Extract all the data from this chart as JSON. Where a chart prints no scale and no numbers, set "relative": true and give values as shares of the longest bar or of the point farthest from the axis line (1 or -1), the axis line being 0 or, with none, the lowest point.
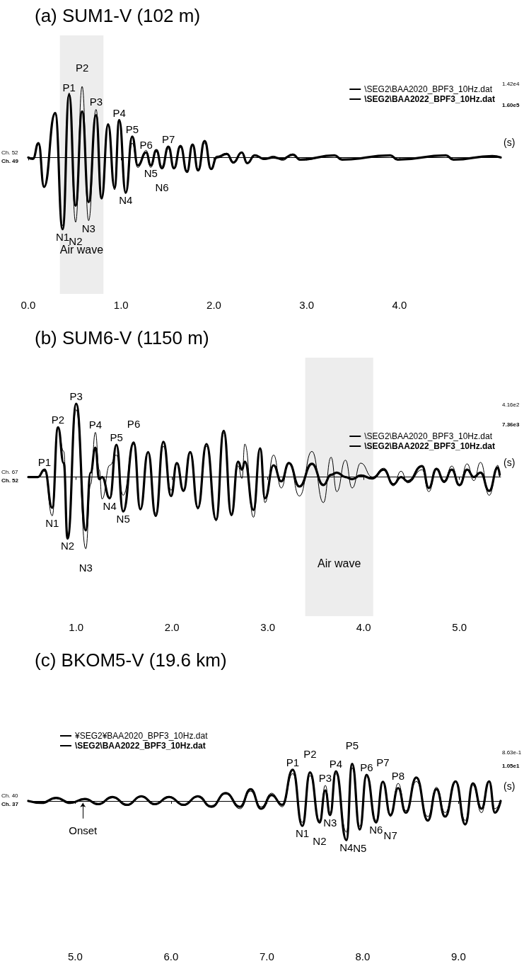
{
  "chart_data": [
    {
      "type": "line",
      "title": "(a) SUM1-V (102 m)",
      "xlabel": "(s)",
      "relative": true,
      "marker": "none",
      "grid": false,
      "legend": "top right",
      "tick_labels": "x",
      "x": [
        0,
        0.05,
        0.11,
        0.17,
        0.29,
        0.37,
        0.44,
        0.51,
        0.58,
        0.65,
        0.73,
        0.79,
        0.86,
        0.93,
        0.98,
        1.05,
        1.12,
        1.18,
        1.27,
        1.32,
        1.38,
        1.44,
        1.51,
        1.57,
        1.64,
        1.71,
        1.77,
        1.83,
        1.9,
        1.97,
        2.03,
        2.14,
        2.21,
        2.3,
        2.36,
        2.44,
        2.54,
        2.64,
        2.74,
        2.85,
        2.93,
        3.3,
        3.38,
        3.9,
        3.98,
        4.5,
        4.58,
        5.0,
        5.09
      ],
      "xlim": [
        0,
        5.09
      ],
      "xticks": [
        {
          "value": 0,
          "label": "0.0"
        },
        {
          "value": 1,
          "label": "1.0"
        },
        {
          "value": 2,
          "label": "2.0"
        },
        {
          "value": 3,
          "label": "3.0"
        },
        {
          "value": 4,
          "label": "4.0"
        }
      ],
      "series": [
        {
          "name": "\\SEG2\\BAA2020_BPF3_10Hz.dat",
          "color": "#000000",
          "values": [
            0,
            -0.02,
            0.18,
            -0.4,
            0.6,
            -0.95,
            0.9,
            -0.9,
            0.99,
            -0.88,
            0.67,
            -0.55,
            0.45,
            -0.45,
            0.5,
            -0.5,
            0.2,
            -0.14,
            0.1,
            -0.14,
            0.08,
            -0.12,
            0.12,
            -0.14,
            0.14,
            -0.18,
            0.16,
            -0.16,
            0.2,
            -0.15,
            0.02,
            0.06,
            -0.08,
            0.06,
            -0.08,
            0.04,
            -0.03,
            0.02,
            -0.04,
            0.05,
            -0.04,
            0.03,
            -0.02,
            0.02,
            -0.02,
            0.02,
            -0.02,
            0.02,
            0
          ]
        },
        {
          "name": "\\SEG2\\BAA2022_BPF3_10Hz.dat",
          "color": "#000000",
          "values": [
            0,
            -0.02,
            0.2,
            -0.41,
            0.62,
            -1.0,
            0.87,
            -0.67,
            0.64,
            -0.62,
            0.59,
            -0.57,
            0.46,
            -0.42,
            0.52,
            -0.49,
            0.29,
            -0.11,
            0.07,
            -0.11,
            0.1,
            -0.15,
            0.15,
            -0.15,
            0.16,
            -0.2,
            0.18,
            -0.18,
            0.23,
            -0.16,
            0,
            0.05,
            -0.07,
            0.07,
            -0.08,
            0.03,
            -0.02,
            0,
            -0.02,
            0.04,
            -0.03,
            0.03,
            -0.03,
            0.03,
            -0.03,
            0.03,
            -0.03,
            0.02,
            0
          ]
        }
      ],
      "bands": [
        {
          "axis": "x",
          "from": 0.34,
          "to": 0.81,
          "label": "Air wave"
        }
      ],
      "annotations": [
        "Ch. 52",
        "Ch. 49",
        "1.42e4",
        "1.60e5",
        {
          "text": "P1",
          "x": 0.44,
          "y": 0.87
        },
        {
          "text": "P2",
          "x": 0.58,
          "y": 0.99
        },
        {
          "text": "P3",
          "x": 0.73,
          "y": 0.67
        },
        {
          "text": "P4",
          "x": 0.98,
          "y": 0.52
        },
        {
          "text": "P5",
          "x": 1.12,
          "y": 0.29
        },
        {
          "text": "P6",
          "x": 1.27,
          "y": 0.07
        },
        {
          "text": "P7",
          "x": 1.51,
          "y": 0.15
        },
        {
          "text": "N1",
          "x": 0.37,
          "y": -1.0
        },
        {
          "text": "N2",
          "x": 0.51,
          "y": -0.9
        },
        {
          "text": "N3",
          "x": 0.65,
          "y": -0.88
        },
        {
          "text": "N4",
          "x": 1.05,
          "y": -0.49
        },
        {
          "text": "N5",
          "x": 1.32,
          "y": -0.11
        },
        {
          "text": "N6",
          "x": 1.44,
          "y": -0.15
        }
      ]
    },
    {
      "type": "line",
      "title": "(b) SUM6-V (1150 m)",
      "xlabel": "(s)",
      "relative": true,
      "marker": "none",
      "grid": false,
      "legend": "top right",
      "tick_labels": "x",
      "x": [
        0.5,
        0.6,
        0.67,
        0.75,
        0.81,
        0.87,
        0.91,
        1.0,
        1.1,
        1.15,
        1.2,
        1.24,
        1.27,
        1.35,
        1.42,
        1.49,
        1.6,
        1.67,
        1.75,
        1.83,
        1.91,
        1.99,
        2.05,
        2.12,
        2.19,
        2.27,
        2.36,
        2.46,
        2.54,
        2.62,
        2.69,
        2.73,
        2.76,
        2.85,
        2.92,
        2.97,
        3.06,
        3.14,
        3.22,
        3.33,
        3.46,
        3.58,
        3.66,
        3.72,
        3.81,
        3.88,
        3.97,
        4.09,
        4.21,
        4.31,
        4.39,
        4.46,
        4.61,
        4.68,
        4.76,
        4.84,
        4.92,
        5.0,
        5.08,
        5.15,
        5.22,
        5.31,
        5.4,
        5.42
      ],
      "xlim": [
        0.5,
        5.43
      ],
      "xticks": [
        {
          "value": 1,
          "label": "1.0"
        },
        {
          "value": 2,
          "label": "2.0"
        },
        {
          "value": 3,
          "label": "3.0"
        },
        {
          "value": 4,
          "label": "4.0"
        },
        {
          "value": 5,
          "label": "5.0"
        }
      ],
      "series": [
        {
          "name": "\\SEG2\\BAA2020_BPF3_10Hz.dat",
          "color": "#000000",
          "values": [
            0,
            0,
            0.08,
            -0.53,
            0.66,
            0.35,
            -0.8,
            0.92,
            -0.98,
            -0.1,
            0.61,
            0.1,
            -0.3,
            0.16,
            0.3,
            -0.25,
            0.45,
            -0.45,
            0.34,
            -0.5,
            0.42,
            -0.18,
            0.18,
            -0.17,
            0.34,
            -0.44,
            0.42,
            -0.6,
            0.6,
            -0.5,
            0.15,
            -0.02,
            0.45,
            -0.55,
            0.4,
            -0.35,
            0.3,
            -0.15,
            0.2,
            -0.26,
            0.35,
            -0.35,
            0.27,
            -0.2,
            0.23,
            -0.15,
            0.19,
            0,
            0.12,
            -0.12,
            0.08,
            -0.08,
            0.1,
            -0.2,
            0.12,
            -0.08,
            0.15,
            -0.12,
            0.18,
            -0.05,
            0.2,
            -0.25,
            0.16,
            0
          ]
        },
        {
          "name": "\\SEG2\\BAA2022_BPF3_10Hz.dat",
          "color": "#000000",
          "values": [
            0,
            0,
            0.1,
            -0.42,
            0.68,
            0.19,
            -0.84,
            1.0,
            -0.73,
            0.06,
            0.4,
            -0.03,
            0,
            -0.29,
            0.44,
            -0.47,
            0.47,
            -0.44,
            0.34,
            -0.53,
            0.48,
            -0.26,
            0.19,
            -0.19,
            0.34,
            -0.42,
            0.45,
            -0.58,
            0.63,
            -0.52,
            0.21,
            0.1,
            0.21,
            -0.45,
            0.39,
            -0.29,
            0.16,
            -0.06,
            0.19,
            -0.13,
            0.18,
            -0.11,
            0.03,
            0.06,
            0,
            -0.03,
            0.02,
            -0.02,
            0.1,
            -0.1,
            0,
            -0.06,
            0.15,
            -0.15,
            0.11,
            -0.06,
            0.1,
            -0.11,
            0.1,
            0,
            0.06,
            -0.19,
            0.13,
            0.03
          ]
        }
      ],
      "bands": [
        {
          "axis": "x",
          "from": 3.39,
          "to": 4.1,
          "label": "Air wave"
        }
      ],
      "annotations": [
        "Ch. 67",
        "Ch. 52",
        "4.16e2",
        "7.36e3",
        {
          "text": "P1",
          "x": 0.67,
          "y": 0.1
        },
        {
          "text": "P2",
          "x": 0.81,
          "y": 0.68
        },
        {
          "text": "P3",
          "x": 1.0,
          "y": 1.0
        },
        {
          "text": "P4",
          "x": 1.2,
          "y": 0.61
        },
        {
          "text": "P5",
          "x": 1.42,
          "y": 0.44
        },
        {
          "text": "P6",
          "x": 1.6,
          "y": 0.47
        },
        {
          "text": "N1",
          "x": 0.75,
          "y": -0.53
        },
        {
          "text": "N2",
          "x": 0.91,
          "y": -0.84
        },
        {
          "text": "N3",
          "x": 1.1,
          "y": -0.98
        },
        {
          "text": "N4",
          "x": 1.35,
          "y": -0.29
        },
        {
          "text": "N5",
          "x": 1.49,
          "y": -0.47
        }
      ]
    },
    {
      "type": "line",
      "title": "(c) BKOM5-V (19.6 km)",
      "xlabel": "(s)",
      "relative": true,
      "marker": "none",
      "grid": false,
      "legend": "top left",
      "tick_labels": "x",
      "x": [
        4.51,
        4.65,
        4.8,
        4.95,
        5.1,
        5.24,
        5.39,
        5.54,
        5.69,
        5.83,
        5.98,
        6.13,
        6.28,
        6.42,
        6.57,
        6.72,
        6.83,
        6.94,
        7.05,
        7.16,
        7.27,
        7.37,
        7.45,
        7.55,
        7.61,
        7.66,
        7.72,
        7.83,
        7.89,
        7.97,
        8.04,
        8.14,
        8.21,
        8.29,
        8.37,
        8.45,
        8.56,
        8.68,
        8.77,
        8.86,
        8.97,
        9.07,
        9.15,
        9.24,
        9.32,
        9.38,
        9.44
      ],
      "xlim": [
        4.51,
        9.44
      ],
      "xticks": [
        {
          "value": 5,
          "label": "5.0"
        },
        {
          "value": 6,
          "label": "6.0"
        },
        {
          "value": 7,
          "label": "7.0"
        },
        {
          "value": 8,
          "label": "8.0"
        },
        {
          "value": 9,
          "label": "9.0"
        }
      ],
      "series": [
        {
          "name": "¥SEG2¥BAA2020_BPF3_10Hz.dat",
          "color": "#000000",
          "values": [
            0,
            -0.04,
            0.06,
            -0.06,
            0.04,
            -0.1,
            0.08,
            -0.12,
            0.1,
            -0.1,
            0.12,
            -0.12,
            0.1,
            -0.12,
            0.18,
            -0.2,
            0.25,
            -0.15,
            0.2,
            -0.15,
            0.7,
            -0.55,
            0.65,
            -0.5,
            0.4,
            -0.3,
            0.7,
            -0.8,
            0.85,
            -0.65,
            0.62,
            -0.5,
            0.5,
            -0.4,
            0.45,
            -0.25,
            0.5,
            -0.4,
            0.35,
            -0.3,
            0.5,
            -0.5,
            0.4,
            -0.3,
            0.5,
            -0.2,
            0
          ]
        },
        {
          "name": "\\SEG2\\BAA2022_BPF3_10Hz.dat",
          "color": "#000000",
          "values": [
            0,
            -0.05,
            0.08,
            -0.05,
            0.05,
            -0.08,
            0.1,
            -0.1,
            0.12,
            -0.08,
            0.1,
            -0.1,
            0.12,
            -0.15,
            0.2,
            -0.15,
            0.3,
            -0.2,
            0.15,
            -0.1,
            0.8,
            -0.64,
            0.73,
            -0.55,
            0.27,
            -0.36,
            0.76,
            -1.0,
            0.95,
            -0.73,
            0.67,
            -0.55,
            0.49,
            -0.36,
            0.33,
            -0.3,
            0.6,
            -0.5,
            0.3,
            -0.4,
            0.5,
            -0.6,
            0.45,
            -0.2,
            0.5,
            -0.3,
            0
          ]
        }
      ],
      "annotations": [
        "Ch. 40",
        "Ch. 37",
        "8.63e-1",
        "1.05e1",
        {
          "text": "Onset",
          "x": 5.08,
          "y": 0
        },
        {
          "text": "P1",
          "x": 7.27,
          "y": 0.8
        },
        {
          "text": "P2",
          "x": 7.45,
          "y": 0.73
        },
        {
          "text": "P3",
          "x": 7.61,
          "y": 0.4
        },
        {
          "text": "P4",
          "x": 7.72,
          "y": 0.76
        },
        {
          "text": "P5",
          "x": 7.89,
          "y": 0.95
        },
        {
          "text": "P6",
          "x": 8.04,
          "y": 0.67
        },
        {
          "text": "P7",
          "x": 8.21,
          "y": 0.5
        },
        {
          "text": "P8",
          "x": 8.37,
          "y": 0.45
        },
        {
          "text": "N1",
          "x": 7.37,
          "y": -0.64
        },
        {
          "text": "N2",
          "x": 7.55,
          "y": -0.55
        },
        {
          "text": "N3",
          "x": 7.66,
          "y": -0.36
        },
        {
          "text": "N4",
          "x": 7.83,
          "y": -1.0
        },
        {
          "text": "N5",
          "x": 7.97,
          "y": -0.73
        },
        {
          "text": "N6",
          "x": 8.14,
          "y": -0.55
        },
        {
          "text": "N7",
          "x": 8.29,
          "y": -0.4
        }
      ]
    }
  ]
}
